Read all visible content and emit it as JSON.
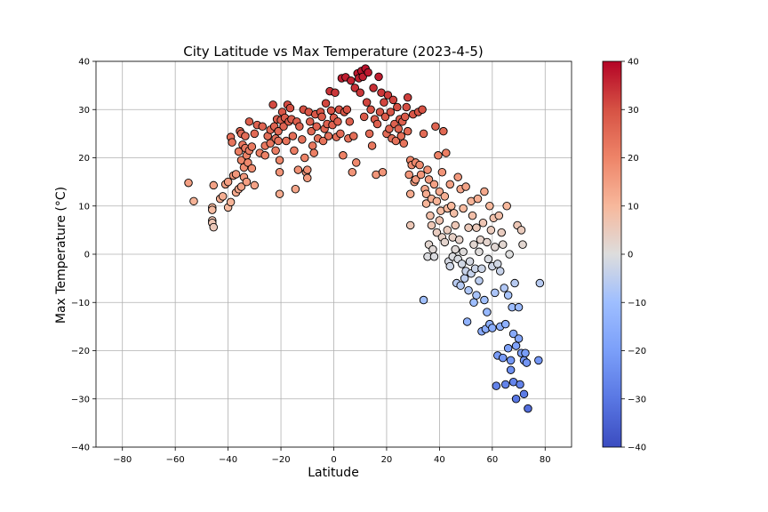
{
  "chart_data": {
    "type": "scatter",
    "title": "City Latitude vs Max Temperature (2023-4-5)",
    "xlabel": "Latitude",
    "ylabel": "Max Temperature (°C)",
    "xlim": [
      -90,
      90
    ],
    "ylim": [
      -40,
      40
    ],
    "xticks": [
      -80,
      -60,
      -40,
      -20,
      0,
      20,
      40,
      60,
      80
    ],
    "yticks": [
      -40,
      -30,
      -20,
      -10,
      0,
      10,
      20,
      30,
      40
    ],
    "grid": true,
    "colormap": "coolwarm",
    "colorbar": {
      "min": -40,
      "max": 40,
      "ticks": [
        -40,
        -30,
        -20,
        -10,
        0,
        10,
        20,
        30,
        40
      ]
    },
    "colors": {
      "cold": "#3b4cc0",
      "neutral": "#dddddd",
      "warm": "#b40426",
      "marker_edge": "#000000",
      "grid": "#b0b0b0"
    },
    "points": [
      [
        -55,
        14.8
      ],
      [
        -53,
        11.0
      ],
      [
        -46,
        9.7
      ],
      [
        -46,
        9.2
      ],
      [
        -46,
        7.0
      ],
      [
        -46,
        6.5
      ],
      [
        -45.5,
        5.6
      ],
      [
        -45.5,
        14.3
      ],
      [
        -43,
        11.5
      ],
      [
        -42,
        12.0
      ],
      [
        -41,
        14.5
      ],
      [
        -40,
        15.0
      ],
      [
        -40,
        9.7
      ],
      [
        -39,
        10.8
      ],
      [
        -39,
        24.3
      ],
      [
        -38.5,
        23.2
      ],
      [
        -38,
        16.3
      ],
      [
        -37,
        16.6
      ],
      [
        -37,
        12.8
      ],
      [
        -36,
        13.5
      ],
      [
        -36,
        21.3
      ],
      [
        -35.5,
        25.5
      ],
      [
        -35,
        25.0
      ],
      [
        -35,
        19.5
      ],
      [
        -35,
        14.0
      ],
      [
        -34.5,
        22.7
      ],
      [
        -34,
        18.0
      ],
      [
        -34,
        16.0
      ],
      [
        -33.5,
        24.5
      ],
      [
        -33.5,
        22.0
      ],
      [
        -33,
        20.5
      ],
      [
        -33,
        15.0
      ],
      [
        -32.5,
        19.0
      ],
      [
        -32,
        27.5
      ],
      [
        -32,
        21.5
      ],
      [
        -31,
        17.8
      ],
      [
        -31,
        22.3
      ],
      [
        -30,
        25.0
      ],
      [
        -30,
        14.3
      ],
      [
        -29,
        26.8
      ],
      [
        -28,
        21.0
      ],
      [
        -27,
        26.5
      ],
      [
        -26,
        22.5
      ],
      [
        -26,
        20.5
      ],
      [
        -25,
        24.5
      ],
      [
        -24,
        25.8
      ],
      [
        -24,
        23.0
      ],
      [
        -23,
        31.0
      ],
      [
        -22.5,
        26.5
      ],
      [
        -22,
        24.0
      ],
      [
        -22,
        21.5
      ],
      [
        -21.5,
        28.0
      ],
      [
        -21,
        25.5
      ],
      [
        -21,
        23.5
      ],
      [
        -20.5,
        19.5
      ],
      [
        -20.5,
        17.0
      ],
      [
        -20.5,
        12.5
      ],
      [
        -20,
        27.8
      ],
      [
        -19.5,
        29.5
      ],
      [
        -19,
        26.5
      ],
      [
        -18.5,
        28.3
      ],
      [
        -18,
        23.5
      ],
      [
        -17.5,
        31.0
      ],
      [
        -17,
        27.5
      ],
      [
        -16.5,
        30.3
      ],
      [
        -16,
        28.0
      ],
      [
        -15.5,
        24.5
      ],
      [
        -15,
        21.5
      ],
      [
        -14.5,
        13.5
      ],
      [
        -14,
        27.5
      ],
      [
        -13.5,
        17.5
      ],
      [
        -13,
        26.5
      ],
      [
        -12,
        23.8
      ],
      [
        -11.5,
        30.0
      ],
      [
        -11,
        20.0
      ],
      [
        -10.5,
        17.0
      ],
      [
        -10,
        17.5
      ],
      [
        -10,
        15.8
      ],
      [
        -9.5,
        29.5
      ],
      [
        -9,
        27.5
      ],
      [
        -8.5,
        25.5
      ],
      [
        -8,
        22.5
      ],
      [
        -7.5,
        21.0
      ],
      [
        -7,
        29.0
      ],
      [
        -6.5,
        26.5
      ],
      [
        -6,
        24.0
      ],
      [
        -5,
        29.5
      ],
      [
        -4.5,
        28.5
      ],
      [
        -4,
        23.5
      ],
      [
        -3.5,
        26.0
      ],
      [
        -3,
        31.3
      ],
      [
        -2.5,
        27.0
      ],
      [
        -2,
        24.5
      ],
      [
        -1.5,
        33.8
      ],
      [
        -1,
        29.8
      ],
      [
        -0.5,
        26.8
      ],
      [
        0,
        28.3
      ],
      [
        0.5,
        33.5
      ],
      [
        1,
        24.3
      ],
      [
        1.5,
        27.5
      ],
      [
        2,
        30.0
      ],
      [
        2.5,
        25.0
      ],
      [
        3,
        36.5
      ],
      [
        3.5,
        20.5
      ],
      [
        4,
        29.5
      ],
      [
        4.5,
        36.7
      ],
      [
        5,
        30.0
      ],
      [
        5.5,
        24.0
      ],
      [
        6,
        27.5
      ],
      [
        6.5,
        36.0
      ],
      [
        7,
        17.0
      ],
      [
        7.5,
        24.5
      ],
      [
        8,
        34.5
      ],
      [
        8.5,
        19.0
      ],
      [
        9,
        37.5
      ],
      [
        9.5,
        36.5
      ],
      [
        10,
        33.5
      ],
      [
        10.5,
        38.0
      ],
      [
        11,
        36.8
      ],
      [
        11.5,
        28.5
      ],
      [
        12,
        38.5
      ],
      [
        12.5,
        31.5
      ],
      [
        13,
        37.7
      ],
      [
        13.5,
        25.0
      ],
      [
        14,
        30.0
      ],
      [
        14.5,
        22.5
      ],
      [
        15,
        34.5
      ],
      [
        15.5,
        28.0
      ],
      [
        16,
        16.5
      ],
      [
        16.5,
        27.0
      ],
      [
        17,
        36.8
      ],
      [
        17.5,
        29.5
      ],
      [
        18,
        33.5
      ],
      [
        18.5,
        17.0
      ],
      [
        19,
        31.5
      ],
      [
        19.5,
        28.5
      ],
      [
        20,
        25.0
      ],
      [
        20.5,
        33.0
      ],
      [
        21,
        26.0
      ],
      [
        21.5,
        29.5
      ],
      [
        22,
        24.0
      ],
      [
        22.5,
        32.0
      ],
      [
        23,
        27.0
      ],
      [
        23.5,
        23.5
      ],
      [
        24,
        30.5
      ],
      [
        24.5,
        26.0
      ],
      [
        25,
        28.0
      ],
      [
        25.5,
        24.5
      ],
      [
        26,
        27.5
      ],
      [
        26.5,
        23.0
      ],
      [
        27,
        28.5
      ],
      [
        27.5,
        30.5
      ],
      [
        28,
        32.5
      ],
      [
        28,
        25.5
      ],
      [
        28.5,
        16.5
      ],
      [
        29,
        19.5
      ],
      [
        29,
        12.5
      ],
      [
        29,
        6.0
      ],
      [
        29.5,
        18.5
      ],
      [
        30,
        29.0
      ],
      [
        30.5,
        15.0
      ],
      [
        31,
        19.0
      ],
      [
        31,
        15.5
      ],
      [
        32,
        29.5
      ],
      [
        32.5,
        18.5
      ],
      [
        33,
        16.5
      ],
      [
        33.5,
        30.0
      ],
      [
        34,
        -9.5
      ],
      [
        34,
        25.0
      ],
      [
        34.5,
        13.5
      ],
      [
        35,
        12.5
      ],
      [
        35,
        10.5
      ],
      [
        35.5,
        17.5
      ],
      [
        35.5,
        -0.5
      ],
      [
        36,
        2.0
      ],
      [
        36,
        15.5
      ],
      [
        36.5,
        8.0
      ],
      [
        37,
        11.5
      ],
      [
        37,
        6.0
      ],
      [
        37.5,
        1.0
      ],
      [
        38,
        14.5
      ],
      [
        38,
        -0.5
      ],
      [
        38.5,
        26.5
      ],
      [
        39,
        4.5
      ],
      [
        39,
        11.0
      ],
      [
        39.5,
        20.5
      ],
      [
        40,
        7.0
      ],
      [
        40,
        13.0
      ],
      [
        40.5,
        9.0
      ],
      [
        41,
        3.5
      ],
      [
        41,
        17.0
      ],
      [
        41.5,
        25.5
      ],
      [
        42,
        2.5
      ],
      [
        42,
        12.0
      ],
      [
        42.5,
        21.0
      ],
      [
        43,
        9.5
      ],
      [
        43,
        5.0
      ],
      [
        43.5,
        -1.5
      ],
      [
        44,
        -2.5
      ],
      [
        44,
        14.5
      ],
      [
        44.5,
        10.0
      ],
      [
        45,
        3.5
      ],
      [
        45,
        -0.5
      ],
      [
        45.5,
        8.5
      ],
      [
        46,
        6.0
      ],
      [
        46,
        1.0
      ],
      [
        46.5,
        -6.0
      ],
      [
        47,
        -1.0
      ],
      [
        47,
        16.0
      ],
      [
        47.5,
        3.0
      ],
      [
        48,
        -6.5
      ],
      [
        48,
        13.5
      ],
      [
        48.5,
        -2.0
      ],
      [
        49,
        9.5
      ],
      [
        49,
        0.5
      ],
      [
        49.5,
        -5.0
      ],
      [
        50,
        14.0
      ],
      [
        50,
        -3.5
      ],
      [
        50.5,
        -14.0
      ],
      [
        51,
        -7.5
      ],
      [
        51,
        5.5
      ],
      [
        51.5,
        -1.5
      ],
      [
        52,
        11.0
      ],
      [
        52,
        -4.0
      ],
      [
        52.5,
        8.0
      ],
      [
        53,
        2.0
      ],
      [
        53,
        -10.0
      ],
      [
        53.5,
        -3.0
      ],
      [
        54,
        5.5
      ],
      [
        54,
        -8.5
      ],
      [
        54.5,
        11.5
      ],
      [
        55,
        0.5
      ],
      [
        55,
        -5.5
      ],
      [
        55.5,
        3.0
      ],
      [
        56,
        -3.0
      ],
      [
        56,
        -16.0
      ],
      [
        56.5,
        6.5
      ],
      [
        57,
        -9.5
      ],
      [
        57,
        13.0
      ],
      [
        57.5,
        -15.5
      ],
      [
        58,
        -12.0
      ],
      [
        58,
        2.5
      ],
      [
        58.5,
        -1.0
      ],
      [
        59,
        -14.5
      ],
      [
        59,
        10.0
      ],
      [
        59.5,
        5.0
      ],
      [
        60,
        -2.5
      ],
      [
        60,
        -15.3
      ],
      [
        60.5,
        7.5
      ],
      [
        61,
        -8.0
      ],
      [
        61,
        1.5
      ],
      [
        61.5,
        -27.3
      ],
      [
        62,
        -21.0
      ],
      [
        62,
        -2.0
      ],
      [
        62.5,
        8.0
      ],
      [
        63,
        -15.0
      ],
      [
        63,
        -3.5
      ],
      [
        63.5,
        4.5
      ],
      [
        64,
        -21.5
      ],
      [
        64,
        2.0
      ],
      [
        64.5,
        -7.0
      ],
      [
        65,
        -27.0
      ],
      [
        65,
        -14.5
      ],
      [
        65.5,
        10.0
      ],
      [
        66,
        -19.5
      ],
      [
        66,
        -8.5
      ],
      [
        66.5,
        0.0
      ],
      [
        67,
        -24.0
      ],
      [
        67,
        -22.0
      ],
      [
        67.5,
        -11.0
      ],
      [
        68,
        -26.5
      ],
      [
        68,
        -16.5
      ],
      [
        68.5,
        -6.0
      ],
      [
        69,
        -19.0
      ],
      [
        69,
        -30.0
      ],
      [
        69.5,
        6.0
      ],
      [
        70,
        -17.5
      ],
      [
        70,
        -11.0
      ],
      [
        70.5,
        -27.0
      ],
      [
        71,
        5.0
      ],
      [
        71,
        -20.5
      ],
      [
        71.5,
        2.0
      ],
      [
        72,
        -29.0
      ],
      [
        72,
        -22.0
      ],
      [
        72.5,
        -20.5
      ],
      [
        73,
        -22.5
      ],
      [
        73.5,
        -32.0
      ],
      [
        77.5,
        -22.0
      ],
      [
        78,
        -6.0
      ]
    ]
  }
}
